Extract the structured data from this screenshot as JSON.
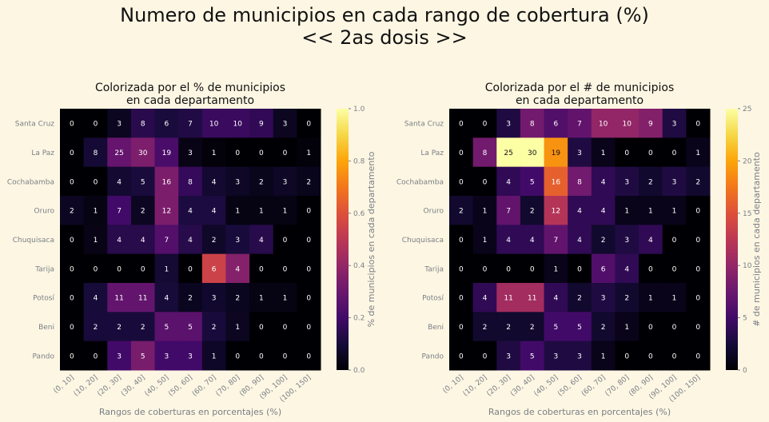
{
  "suptitle": [
    "Numero de municipios en cada rango de cobertura (%)",
    "<< 2as dosis >>"
  ],
  "chart_data": [
    {
      "type": "heatmap",
      "title": [
        "Colorizada por el % de municipios",
        "en cada departamento"
      ],
      "xlabel": "Rangos de coberturas en porcentajes (%)",
      "ylabel": "",
      "x": [
        "(0, 10]",
        "(10, 20]",
        "(20, 30]",
        "(30, 40]",
        "(40, 50]",
        "(50, 60]",
        "(60, 70]",
        "(70, 80]",
        "(80, 90]",
        "(90, 100]",
        "(100, 150]"
      ],
      "y": [
        "Santa Cruz",
        "La Paz",
        "Cochabamba",
        "Oruro",
        "Chuquisaca",
        "Tarija",
        "Potosí",
        "Beni",
        "Pando"
      ],
      "annotations": [
        [
          0,
          0,
          3,
          8,
          6,
          7,
          10,
          10,
          9,
          3,
          0
        ],
        [
          0,
          8,
          25,
          30,
          19,
          3,
          1,
          0,
          0,
          0,
          1
        ],
        [
          0,
          0,
          4,
          5,
          16,
          8,
          4,
          3,
          2,
          3,
          2
        ],
        [
          2,
          1,
          7,
          2,
          12,
          4,
          4,
          1,
          1,
          1,
          0
        ],
        [
          0,
          1,
          4,
          4,
          7,
          4,
          2,
          3,
          4,
          0,
          0
        ],
        [
          0,
          0,
          0,
          0,
          1,
          0,
          6,
          4,
          0,
          0,
          0
        ],
        [
          0,
          4,
          11,
          11,
          4,
          2,
          3,
          2,
          1,
          1,
          0
        ],
        [
          0,
          2,
          2,
          2,
          5,
          5,
          2,
          1,
          0,
          0,
          0
        ],
        [
          0,
          0,
          3,
          5,
          3,
          3,
          1,
          0,
          0,
          0,
          0
        ]
      ],
      "color_basis": "row_fraction",
      "colormap": "inferno",
      "colorbar": {
        "label": "% de municipios en cada departamento",
        "range": [
          0,
          1
        ],
        "ticks": [
          0.0,
          0.2,
          0.4,
          0.6,
          0.8,
          1.0
        ],
        "tick_labels": [
          "0.0",
          "0.2",
          "0.4",
          "0.6",
          "0.8",
          "1.0"
        ]
      }
    },
    {
      "type": "heatmap",
      "title": [
        "Colorizada por el # de municipios",
        "en cada departamento"
      ],
      "xlabel": "Rangos de coberturas en porcentajes (%)",
      "ylabel": "",
      "x": [
        "(0, 10]",
        "(10, 20]",
        "(20, 30]",
        "(30, 40]",
        "(40, 50]",
        "(50, 60]",
        "(60, 70]",
        "(70, 80]",
        "(80, 90]",
        "(90, 100]",
        "(100, 150]"
      ],
      "y": [
        "Santa Cruz",
        "La Paz",
        "Cochabamba",
        "Oruro",
        "Chuquisaca",
        "Tarija",
        "Potosí",
        "Beni",
        "Pando"
      ],
      "annotations": [
        [
          0,
          0,
          3,
          8,
          6,
          7,
          10,
          10,
          9,
          3,
          0
        ],
        [
          0,
          8,
          25,
          30,
          19,
          3,
          1,
          0,
          0,
          0,
          1
        ],
        [
          0,
          0,
          4,
          5,
          16,
          8,
          4,
          3,
          2,
          3,
          2
        ],
        [
          2,
          1,
          7,
          2,
          12,
          4,
          4,
          1,
          1,
          1,
          0
        ],
        [
          0,
          1,
          4,
          4,
          7,
          4,
          2,
          3,
          4,
          0,
          0
        ],
        [
          0,
          0,
          0,
          0,
          1,
          0,
          6,
          4,
          0,
          0,
          0
        ],
        [
          0,
          4,
          11,
          11,
          4,
          2,
          3,
          2,
          1,
          1,
          0
        ],
        [
          0,
          2,
          2,
          2,
          5,
          5,
          2,
          1,
          0,
          0,
          0
        ],
        [
          0,
          0,
          3,
          5,
          3,
          3,
          1,
          0,
          0,
          0,
          0
        ]
      ],
      "color_basis": "count",
      "colormap": "inferno",
      "colorbar": {
        "label": "# de municipios en cada departamento",
        "range": [
          0,
          25
        ],
        "ticks": [
          0,
          5,
          10,
          15,
          20,
          25
        ],
        "tick_labels": [
          "0",
          "5",
          "10",
          "15",
          "20",
          "25"
        ]
      }
    }
  ],
  "colors": {
    "background": "#fdf6e3",
    "tick_text": "#7a7f85",
    "title_text": "#111111"
  }
}
